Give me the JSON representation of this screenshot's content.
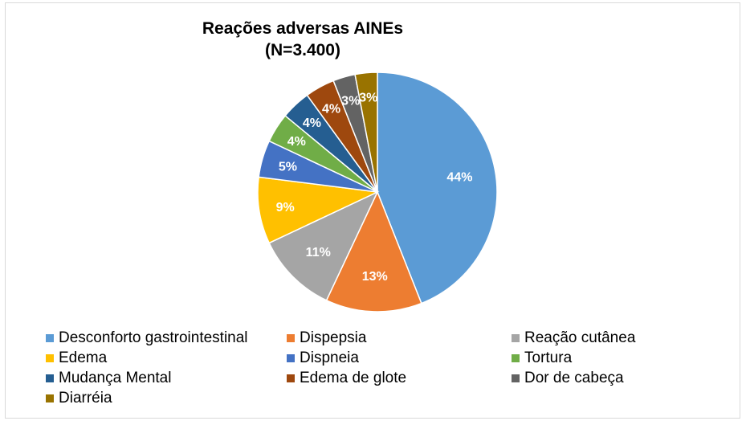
{
  "chart_data": {
    "type": "pie",
    "title": "Reações adversas AINEs",
    "subtitle": "(N=3.400)",
    "categories": [
      "Desconforto gastrointestinal",
      "Dispepsia",
      "Reação cutânea",
      "Edema",
      "Dispneia",
      "Tortura",
      "Mudança Mental",
      "Edema de glote",
      "Dor de cabeça",
      "Diarréia"
    ],
    "values": [
      44,
      13,
      11,
      9,
      5,
      4,
      4,
      4,
      3,
      3
    ],
    "data_labels": [
      "44%",
      "13%",
      "11%",
      "9%",
      "5%",
      "4%",
      "4%",
      "4%",
      "3%",
      "3%"
    ],
    "colors": [
      "#5b9bd5",
      "#ed7d31",
      "#a5a5a5",
      "#ffc000",
      "#4472c4",
      "#70ad47",
      "#255e91",
      "#9e480e",
      "#636363",
      "#997300"
    ],
    "legend_position": "bottom"
  }
}
